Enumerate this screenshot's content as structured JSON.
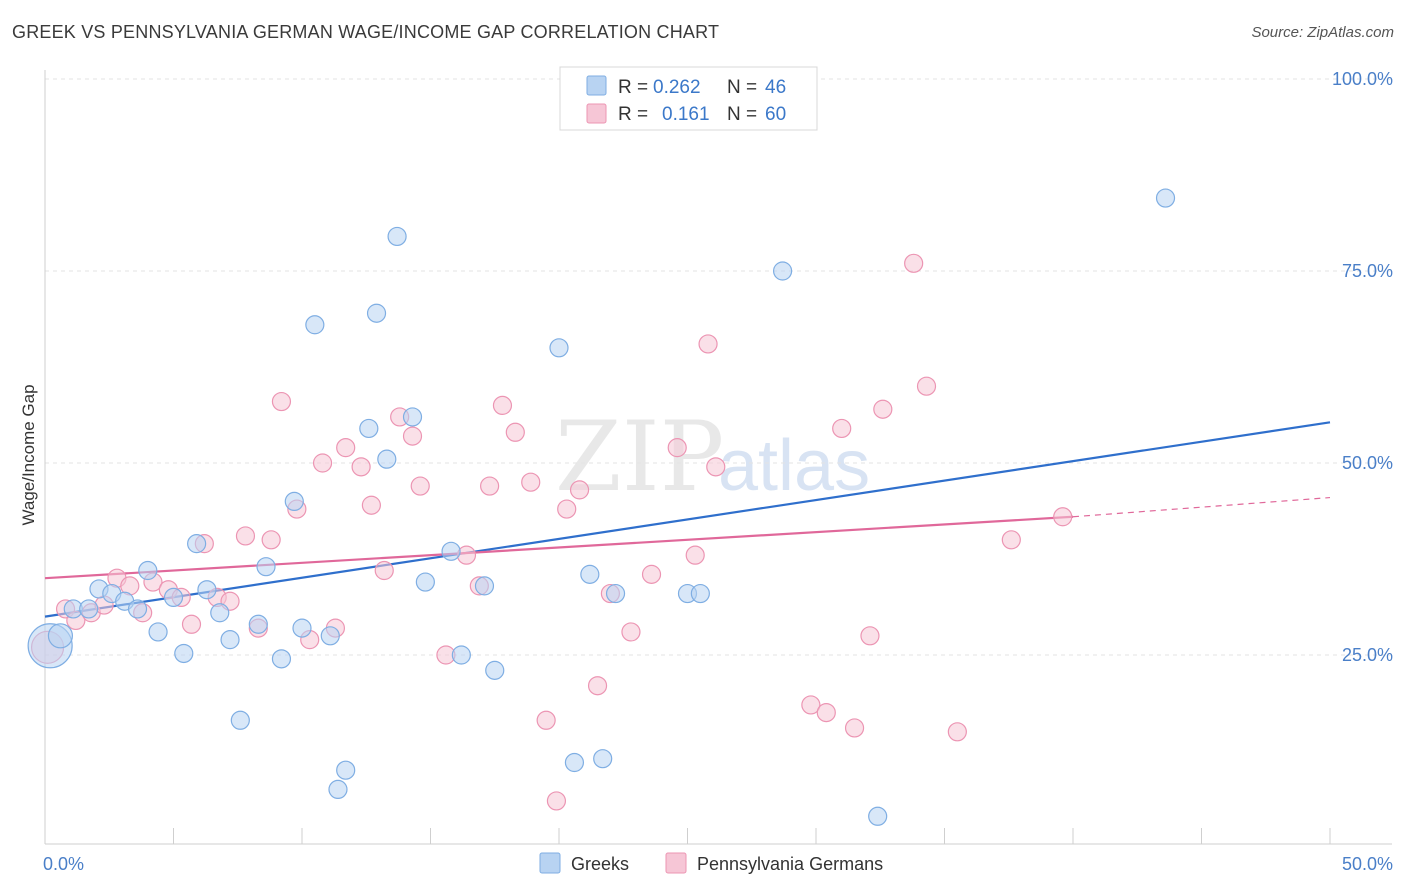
{
  "title": "GREEK VS PENNSYLVANIA GERMAN WAGE/INCOME GAP CORRELATION CHART",
  "source": "Source: ZipAtlas.com",
  "watermark": {
    "zip": "ZIP",
    "atlas": "atlas"
  },
  "colors": {
    "blue_fill": "#b8d3f2",
    "blue_stroke": "#7faee3",
    "blue_line": "#2f6fcc",
    "pink_fill": "#f6c6d6",
    "pink_stroke": "#ec95b3",
    "pink_line": "#e0689a",
    "grid": "#e3e3e3",
    "axis_label": "#4a7fc8"
  },
  "legend": {
    "rows": [
      {
        "r_label": "R =",
        "r_value": "0.262",
        "n_label": "N =",
        "n_value": "46",
        "series": "blue"
      },
      {
        "r_label": "R =",
        "r_value": "0.161",
        "n_label": "N =",
        "n_value": "60",
        "series": "pink"
      }
    ]
  },
  "bottom_legend": [
    "Greeks",
    "Pennsylvania Germans"
  ],
  "chart_data": {
    "type": "scatter",
    "title": "GREEK VS PENNSYLVANIA GERMAN WAGE/INCOME GAP CORRELATION CHART",
    "xlabel": "",
    "ylabel": "Wage/Income Gap",
    "xlim": [
      0,
      50
    ],
    "ylim": [
      0,
      102
    ],
    "x_tick_labels": [
      "0.0%",
      "50.0%"
    ],
    "y_ticks": [
      25,
      50,
      75,
      100
    ],
    "y_tick_labels": [
      "25.0%",
      "50.0%",
      "75.0%",
      "100.0%"
    ],
    "grid": "horizontal dashed",
    "legend_placement": "top-center",
    "series": [
      {
        "name": "Greeks",
        "color": "blue",
        "R": 0.262,
        "N": 46,
        "trend": {
          "x": [
            0,
            50
          ],
          "y": [
            30.0,
            55.3
          ]
        },
        "points": [
          [
            0.2,
            26.2,
            22
          ],
          [
            0.6,
            27.5,
            12
          ],
          [
            1.1,
            31.0,
            10
          ],
          [
            1.7,
            31.0,
            10
          ],
          [
            2.1,
            33.6,
            10
          ],
          [
            2.6,
            33.0,
            10
          ],
          [
            3.1,
            32.0,
            10
          ],
          [
            3.6,
            31.0,
            10
          ],
          [
            4.0,
            36.0,
            10
          ],
          [
            4.4,
            28.0,
            10
          ],
          [
            5.0,
            32.5,
            10
          ],
          [
            5.4,
            25.2,
            10
          ],
          [
            5.9,
            39.5,
            10
          ],
          [
            6.3,
            33.5,
            10
          ],
          [
            6.8,
            30.5,
            10
          ],
          [
            7.2,
            27.0,
            10
          ],
          [
            7.6,
            16.5,
            10
          ],
          [
            8.3,
            29.0,
            10
          ],
          [
            8.6,
            36.5,
            10
          ],
          [
            9.2,
            24.5,
            10
          ],
          [
            9.7,
            45.0,
            10
          ],
          [
            10.0,
            28.5,
            10
          ],
          [
            10.5,
            68.0,
            10
          ],
          [
            11.1,
            27.5,
            10
          ],
          [
            11.4,
            7.5,
            10
          ],
          [
            11.7,
            10.0,
            10
          ],
          [
            12.6,
            54.5,
            10
          ],
          [
            12.9,
            69.5,
            10
          ],
          [
            13.3,
            50.5,
            10
          ],
          [
            13.7,
            79.5,
            10
          ],
          [
            14.3,
            56.0,
            10
          ],
          [
            14.8,
            34.5,
            10
          ],
          [
            15.8,
            38.5,
            10
          ],
          [
            16.2,
            25.0,
            10
          ],
          [
            17.1,
            34.0,
            10
          ],
          [
            17.5,
            23.0,
            10
          ],
          [
            20.0,
            65.0,
            10
          ],
          [
            20.6,
            11.0,
            10
          ],
          [
            21.2,
            35.5,
            10
          ],
          [
            21.7,
            11.5,
            10
          ],
          [
            22.2,
            33.0,
            10
          ],
          [
            25.0,
            33.0,
            10
          ],
          [
            25.5,
            33.0,
            10
          ],
          [
            28.7,
            75.0,
            10
          ],
          [
            32.4,
            4.0,
            10
          ],
          [
            43.6,
            84.5,
            10
          ]
        ]
      },
      {
        "name": "Pennsylvania Germans",
        "color": "pink",
        "R": 0.161,
        "N": 60,
        "trend": {
          "x": [
            0,
            40
          ],
          "y": [
            35.0,
            43.0
          ]
        },
        "trend_dashed_extension": {
          "x": [
            40,
            50
          ],
          "y": [
            43.0,
            45.5
          ]
        },
        "points": [
          [
            0.1,
            26.0,
            16
          ],
          [
            0.8,
            31.0,
            10
          ],
          [
            1.2,
            29.5,
            10
          ],
          [
            1.8,
            30.5,
            10
          ],
          [
            2.3,
            31.5,
            10
          ],
          [
            2.8,
            35.0,
            10
          ],
          [
            3.3,
            34.0,
            10
          ],
          [
            3.8,
            30.5,
            10
          ],
          [
            4.2,
            34.5,
            10
          ],
          [
            4.8,
            33.5,
            10
          ],
          [
            5.3,
            32.5,
            10
          ],
          [
            5.7,
            29.0,
            10
          ],
          [
            6.2,
            39.5,
            10
          ],
          [
            6.7,
            32.5,
            10
          ],
          [
            7.2,
            32.0,
            10
          ],
          [
            7.8,
            40.5,
            10
          ],
          [
            8.3,
            28.5,
            10
          ],
          [
            8.8,
            40.0,
            10
          ],
          [
            9.2,
            58.0,
            10
          ],
          [
            9.8,
            44.0,
            10
          ],
          [
            10.3,
            27.0,
            10
          ],
          [
            10.8,
            50.0,
            10
          ],
          [
            11.3,
            28.5,
            10
          ],
          [
            11.7,
            52.0,
            10
          ],
          [
            12.3,
            49.5,
            10
          ],
          [
            12.7,
            44.5,
            10
          ],
          [
            13.2,
            36.0,
            10
          ],
          [
            13.8,
            56.0,
            10
          ],
          [
            14.3,
            53.5,
            10
          ],
          [
            14.6,
            47.0,
            10
          ],
          [
            15.6,
            25.0,
            10
          ],
          [
            16.4,
            38.0,
            10
          ],
          [
            16.9,
            34.0,
            10
          ],
          [
            17.3,
            47.0,
            10
          ],
          [
            17.8,
            57.5,
            10
          ],
          [
            18.3,
            54.0,
            10
          ],
          [
            18.9,
            47.5,
            10
          ],
          [
            19.5,
            16.5,
            10
          ],
          [
            19.9,
            6.0,
            10
          ],
          [
            20.3,
            44.0,
            10
          ],
          [
            20.8,
            46.5,
            10
          ],
          [
            21.5,
            21.0,
            10
          ],
          [
            22.0,
            33.0,
            10
          ],
          [
            22.8,
            28.0,
            10
          ],
          [
            23.6,
            35.5,
            10
          ],
          [
            24.6,
            52.0,
            10
          ],
          [
            25.3,
            38.0,
            10
          ],
          [
            25.8,
            65.5,
            10
          ],
          [
            26.1,
            49.5,
            10
          ],
          [
            29.8,
            18.5,
            10
          ],
          [
            30.4,
            17.5,
            10
          ],
          [
            31.0,
            54.5,
            10
          ],
          [
            31.5,
            15.5,
            10
          ],
          [
            32.1,
            27.5,
            10
          ],
          [
            32.6,
            57.0,
            10
          ],
          [
            33.8,
            76.0,
            10
          ],
          [
            34.3,
            60.0,
            10
          ],
          [
            35.5,
            15.0,
            10
          ],
          [
            37.6,
            40.0,
            10
          ],
          [
            39.6,
            43.0,
            10
          ]
        ]
      }
    ]
  }
}
